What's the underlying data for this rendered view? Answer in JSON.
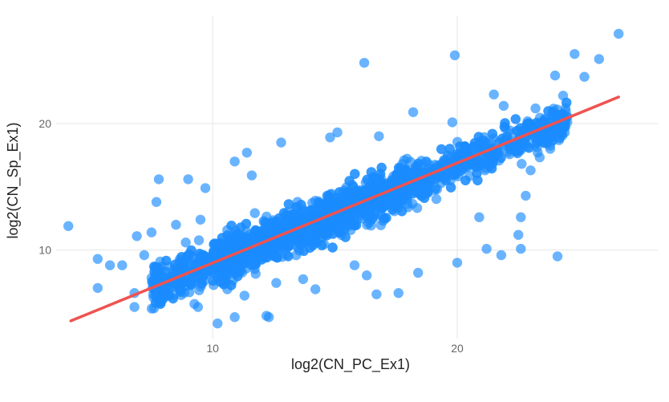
{
  "chart_data": {
    "type": "scatter",
    "title": "",
    "xlabel": "log2(CN_PC_Ex1)",
    "ylabel": "log2(CN_Sp_Ex1)",
    "xlim": [
      3.6,
      28.2
    ],
    "ylim": [
      3.0,
      28.5
    ],
    "xticks": [
      10,
      20
    ],
    "yticks": [
      10,
      20
    ],
    "grid": true,
    "point_color": "#1a8cff",
    "fit_line": {
      "color": "#ef5350",
      "x": [
        4.2,
        26.6
      ],
      "y": [
        4.4,
        22.1
      ]
    },
    "cluster": {
      "n": 2600,
      "x_range": [
        7.5,
        24.5
      ],
      "slope": 0.79,
      "intercept": 1.05,
      "spread": 1.55,
      "seed": 7
    },
    "points": [
      [
        4.1,
        11.9
      ],
      [
        5.3,
        9.3
      ],
      [
        5.8,
        8.8
      ],
      [
        6.3,
        8.8
      ],
      [
        5.3,
        7.0
      ],
      [
        6.9,
        11.1
      ],
      [
        7.5,
        11.4
      ],
      [
        7.8,
        15.6
      ],
      [
        7.7,
        13.8
      ],
      [
        7.2,
        9.6
      ],
      [
        7.6,
        8.7
      ],
      [
        6.8,
        6.6
      ],
      [
        6.8,
        5.5
      ],
      [
        7.6,
        5.4
      ],
      [
        7.9,
        5.9
      ],
      [
        9.4,
        5.5
      ],
      [
        10.2,
        4.2
      ],
      [
        10.9,
        4.7
      ],
      [
        12.2,
        4.8
      ],
      [
        12.3,
        4.7
      ],
      [
        16.2,
        24.8
      ],
      [
        19.9,
        25.4
      ],
      [
        26.6,
        27.1
      ],
      [
        25.8,
        25.1
      ],
      [
        24.8,
        25.5
      ],
      [
        25.2,
        23.7
      ],
      [
        24.0,
        23.8
      ],
      [
        23.2,
        21.2
      ],
      [
        24.5,
        20.1
      ],
      [
        24.3,
        20.6
      ],
      [
        24.4,
        19.3
      ],
      [
        22.5,
        18.7
      ],
      [
        23.8,
        18.0
      ],
      [
        23.0,
        16.3
      ],
      [
        22.8,
        14.3
      ],
      [
        22.6,
        12.6
      ],
      [
        22.5,
        11.2
      ],
      [
        22.6,
        10.1
      ],
      [
        24.1,
        9.5
      ],
      [
        21.8,
        9.6
      ],
      [
        21.2,
        10.1
      ],
      [
        20.9,
        12.6
      ],
      [
        20.0,
        9.0
      ],
      [
        18.4,
        8.2
      ],
      [
        17.6,
        6.6
      ],
      [
        16.7,
        6.5
      ],
      [
        16.3,
        8.0
      ],
      [
        15.8,
        8.8
      ],
      [
        16.8,
        19.0
      ],
      [
        18.2,
        20.9
      ],
      [
        19.8,
        20.1
      ],
      [
        21.5,
        22.3
      ],
      [
        21.9,
        21.4
      ],
      [
        15.1,
        19.3
      ],
      [
        14.8,
        18.9
      ],
      [
        12.8,
        18.5
      ],
      [
        11.4,
        17.7
      ],
      [
        10.9,
        17.0
      ],
      [
        9.0,
        15.6
      ],
      [
        9.7,
        14.9
      ],
      [
        11.6,
        15.9
      ],
      [
        8.5,
        12.0
      ],
      [
        9.5,
        12.4
      ],
      [
        8.9,
        10.6
      ],
      [
        9.7,
        8.3
      ],
      [
        10.6,
        6.9
      ],
      [
        11.3,
        6.4
      ],
      [
        14.2,
        6.9
      ],
      [
        13.7,
        7.7
      ],
      [
        12.6,
        7.4
      ]
    ]
  }
}
